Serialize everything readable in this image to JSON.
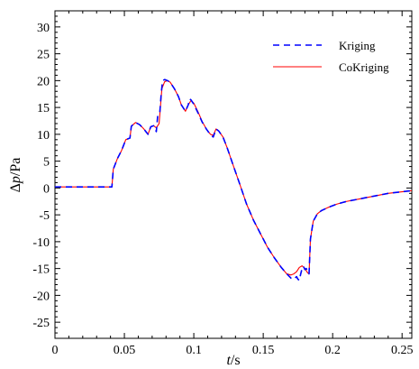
{
  "chart_data": {
    "type": "line",
    "xlabel_var": "t",
    "xlabel_unit": "/s",
    "ylabel_prefix": "Δ",
    "ylabel_var": "p",
    "ylabel_unit": "/Pa",
    "xlim": [
      0,
      0.257
    ],
    "ylim": [
      -28,
      33
    ],
    "xticks": [
      0,
      0.05,
      0.1,
      0.15,
      0.2,
      0.25
    ],
    "xtick_labels": [
      "0",
      "0.05",
      "0.1",
      "0.15",
      "0.2",
      "0.25"
    ],
    "yticks": [
      -25,
      -20,
      -15,
      -10,
      -5,
      0,
      5,
      10,
      15,
      20,
      25,
      30
    ],
    "ytick_labels": [
      "-25",
      "-20",
      "-15",
      "-10",
      "-5",
      "0",
      "5",
      "10",
      "15",
      "20",
      "25",
      "30"
    ],
    "grid": false,
    "legend_position": "top-right",
    "series": [
      {
        "name": "Kriging",
        "color": "#0000ff",
        "dash": "dashed",
        "x": [
          0,
          0.041,
          0.042,
          0.045,
          0.048,
          0.051,
          0.054,
          0.055,
          0.058,
          0.061,
          0.064,
          0.067,
          0.069,
          0.071,
          0.073,
          0.074,
          0.0755,
          0.0765,
          0.0775,
          0.079,
          0.081,
          0.083,
          0.086,
          0.089,
          0.091,
          0.094,
          0.096,
          0.097,
          0.098,
          0.1,
          0.103,
          0.106,
          0.109,
          0.112,
          0.114,
          0.116,
          0.118,
          0.121,
          0.124,
          0.128,
          0.133,
          0.138,
          0.143,
          0.148,
          0.153,
          0.158,
          0.163,
          0.167,
          0.17,
          0.172,
          0.174,
          0.175,
          0.176,
          0.177,
          0.178,
          0.179,
          0.18,
          0.181,
          0.182,
          0.183,
          0.184,
          0.186,
          0.189,
          0.192,
          0.197,
          0.203,
          0.21,
          0.22,
          0.23,
          0.24,
          0.25,
          0.257
        ],
        "y": [
          0.2,
          0.2,
          3.5,
          5.5,
          7.0,
          9.0,
          9.3,
          11.5,
          12.2,
          11.8,
          11.0,
          10.0,
          11.4,
          11.6,
          10.5,
          13.5,
          14.0,
          17.5,
          20.0,
          20.2,
          20.0,
          19.7,
          18.5,
          17.0,
          15.5,
          14.3,
          15.5,
          16.6,
          16.4,
          15.6,
          14.0,
          12.3,
          11.0,
          9.9,
          9.5,
          11.0,
          10.6,
          9.5,
          7.5,
          4.5,
          0.8,
          -3.0,
          -6.0,
          -8.5,
          -11.0,
          -13.0,
          -14.8,
          -16.0,
          -16.8,
          -17.0,
          -16.5,
          -17.0,
          -17.2,
          -16.0,
          -15.0,
          -14.6,
          -15.2,
          -15.0,
          -15.5,
          -16.0,
          -9.5,
          -6.2,
          -4.8,
          -4.2,
          -3.6,
          -3.0,
          -2.5,
          -2.0,
          -1.5,
          -1.0,
          -0.7,
          -0.5
        ]
      },
      {
        "name": "CoKriging",
        "color": "#ff0000",
        "dash": "solid",
        "x": [
          0,
          0.041,
          0.042,
          0.045,
          0.048,
          0.051,
          0.054,
          0.055,
          0.058,
          0.061,
          0.064,
          0.067,
          0.069,
          0.071,
          0.073,
          0.075,
          0.077,
          0.079,
          0.081,
          0.083,
          0.086,
          0.089,
          0.091,
          0.094,
          0.096,
          0.098,
          0.1,
          0.103,
          0.106,
          0.109,
          0.112,
          0.114,
          0.116,
          0.118,
          0.121,
          0.124,
          0.128,
          0.133,
          0.138,
          0.143,
          0.148,
          0.153,
          0.158,
          0.163,
          0.167,
          0.17,
          0.172,
          0.174,
          0.176,
          0.178,
          0.18,
          0.182,
          0.183,
          0.184,
          0.186,
          0.189,
          0.192,
          0.197,
          0.203,
          0.21,
          0.22,
          0.23,
          0.24,
          0.25,
          0.257
        ],
        "y": [
          0.2,
          0.2,
          3.5,
          5.5,
          7.0,
          9.0,
          9.3,
          11.5,
          12.2,
          11.8,
          11.0,
          10.0,
          11.4,
          11.6,
          11.2,
          12.0,
          18.5,
          19.8,
          20.0,
          19.7,
          18.5,
          17.0,
          15.5,
          14.3,
          15.5,
          16.3,
          15.8,
          14.2,
          12.4,
          11.0,
          10.0,
          9.8,
          11.0,
          10.6,
          9.5,
          7.5,
          4.5,
          0.8,
          -3.0,
          -6.0,
          -8.5,
          -11.0,
          -13.0,
          -14.8,
          -16.0,
          -16.2,
          -16.0,
          -15.6,
          -14.8,
          -14.5,
          -15.0,
          -15.8,
          -16.0,
          -9.5,
          -6.2,
          -4.8,
          -4.2,
          -3.6,
          -3.0,
          -2.5,
          -2.0,
          -1.5,
          -1.0,
          -0.7,
          -0.5
        ]
      }
    ]
  }
}
